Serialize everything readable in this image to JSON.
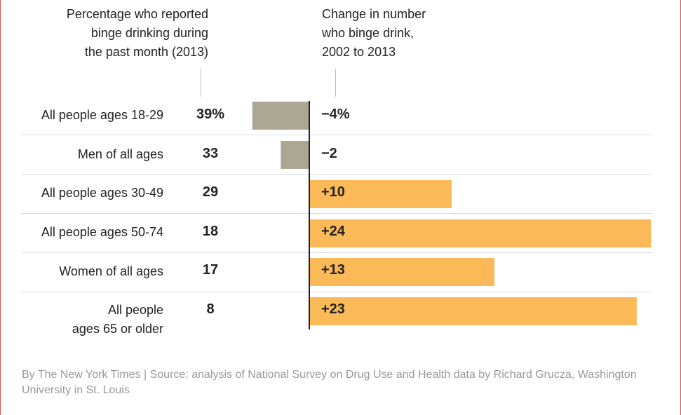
{
  "header": {
    "left": "Percentage who reported\nbinge drinking during\nthe past month (2013)",
    "right": "Change in number\nwho binge drink,\n2002 to 2013"
  },
  "chart_data": {
    "type": "bar",
    "categories": [
      "All people ages 18-29",
      "Men of all ages",
      "All people ages 30-49",
      "All people ages 50-74",
      "Women of all ages",
      "All people\nages 65 or older"
    ],
    "percent_labels": [
      "39%",
      "33",
      "29",
      "18",
      "17",
      "8"
    ],
    "values": [
      -4,
      -2,
      10,
      24,
      13,
      23
    ],
    "value_labels": [
      "−4%",
      "−2",
      "+10",
      "+24",
      "+13",
      "+23"
    ],
    "colors": {
      "negative": "#aca793",
      "positive": "#fbb957"
    }
  },
  "footer": {
    "source": "By The New York Times | Source: analysis of National Survey on Drug Use and Health data by Richard Grucza, Washington University in St. Louis"
  }
}
